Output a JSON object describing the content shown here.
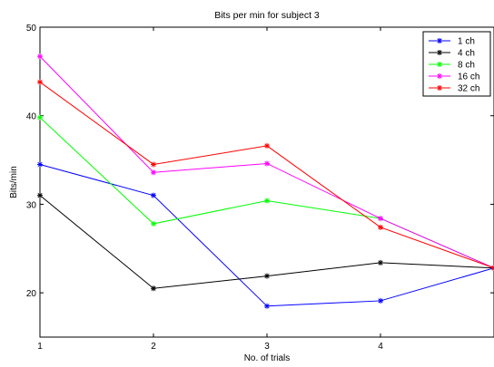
{
  "chart_data": {
    "type": "line",
    "title": "Bits per min for subject 3",
    "xlabel": "No. of trials",
    "ylabel": "Bits/min",
    "x": [
      1,
      2,
      3,
      4,
      5
    ],
    "xlim": [
      1,
      5
    ],
    "ylim": [
      15,
      50
    ],
    "xticks": [
      1,
      2,
      3,
      4
    ],
    "yticks": [
      20,
      30,
      40,
      50
    ],
    "grid": false,
    "legend_position": "top-right",
    "series": [
      {
        "name": "1 ch",
        "color": "#0000ff",
        "values": [
          34.5,
          31.0,
          18.5,
          19.1,
          22.8
        ]
      },
      {
        "name": "4 ch",
        "color": "#000000",
        "values": [
          31.0,
          20.5,
          21.9,
          23.4,
          22.8
        ]
      },
      {
        "name": "8 ch",
        "color": "#00ff00",
        "values": [
          39.8,
          27.8,
          30.4,
          28.4,
          22.8
        ]
      },
      {
        "name": "16 ch",
        "color": "#ff00ff",
        "values": [
          46.7,
          33.6,
          34.6,
          28.4,
          22.8
        ]
      },
      {
        "name": "32 ch",
        "color": "#ff0000",
        "values": [
          43.8,
          34.5,
          36.6,
          27.4,
          22.8
        ]
      }
    ]
  }
}
